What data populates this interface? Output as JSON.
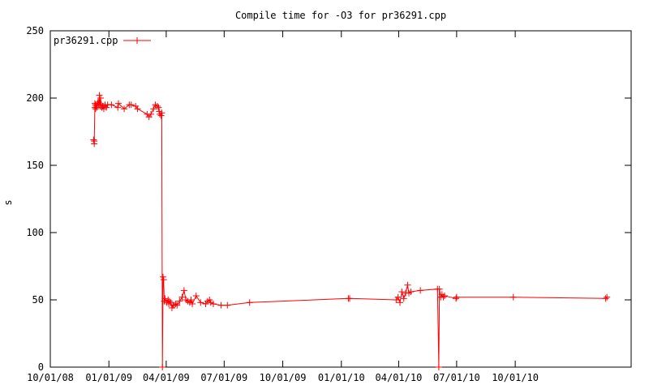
{
  "chart_data": {
    "type": "line",
    "title": "Compile time for -O3 for pr36291.cpp",
    "xlabel": "",
    "ylabel": "s",
    "xlim": [
      "2008-10-01",
      "2011-04-01"
    ],
    "ylim": [
      0,
      250
    ],
    "xticks": [
      "10/01/08",
      "01/01/09",
      "04/01/09",
      "07/01/09",
      "10/01/09",
      "01/01/10",
      "04/01/10",
      "07/01/10",
      "10/01/10"
    ],
    "yticks": [
      0,
      50,
      100,
      150,
      200,
      250
    ],
    "legend_position": "top-left",
    "grid": false,
    "series": [
      {
        "name": "pr36291.cpp",
        "color": "#ff0000",
        "marker": "plus",
        "x": [
          "2008-12-08",
          "2008-12-09",
          "2008-12-09",
          "2008-12-10",
          "2008-12-10",
          "2008-12-11",
          "2008-12-11",
          "2008-12-12",
          "2008-12-13",
          "2008-12-14",
          "2008-12-15",
          "2008-12-16",
          "2008-12-17",
          "2008-12-18",
          "2008-12-19",
          "2008-12-20",
          "2008-12-21",
          "2008-12-22",
          "2008-12-23",
          "2008-12-24",
          "2008-12-26",
          "2008-12-28",
          "2008-12-30",
          "2009-01-05",
          "2009-01-15",
          "2009-01-16",
          "2009-01-25",
          "2009-02-02",
          "2009-02-05",
          "2009-02-12",
          "2009-02-15",
          "2009-03-02",
          "2009-03-05",
          "2009-03-08",
          "2009-03-12",
          "2009-03-15",
          "2009-03-18",
          "2009-03-20",
          "2009-03-21",
          "2009-03-22",
          "2009-03-24",
          "2009-03-25",
          "2009-03-26",
          "2009-03-27",
          "2009-03-28",
          "2009-03-29",
          "2009-03-30",
          "2009-04-02",
          "2009-04-04",
          "2009-04-05",
          "2009-04-06",
          "2009-04-08",
          "2009-04-10",
          "2009-04-12",
          "2009-04-14",
          "2009-04-16",
          "2009-04-18",
          "2009-04-22",
          "2009-04-26",
          "2009-04-29",
          "2009-05-02",
          "2009-05-05",
          "2009-05-08",
          "2009-05-10",
          "2009-05-12",
          "2009-05-18",
          "2009-05-25",
          "2009-06-02",
          "2009-06-05",
          "2009-06-08",
          "2009-06-10",
          "2009-06-14",
          "2009-06-26",
          "2009-07-06",
          "2009-08-10",
          "2010-01-12",
          "2010-01-14",
          "2010-03-28",
          "2010-03-31",
          "2010-04-03",
          "2010-04-06",
          "2010-04-09",
          "2010-04-12",
          "2010-04-15",
          "2010-04-17",
          "2010-04-20",
          "2010-05-05",
          "2010-06-01",
          "2010-06-03",
          "2010-06-04",
          "2010-06-06",
          "2010-06-08",
          "2010-06-10",
          "2010-06-12",
          "2010-06-30",
          "2010-07-01",
          "2010-09-28",
          "2011-02-20",
          "2011-02-22"
        ],
        "values": [
          169,
          166,
          168,
          196,
          193,
          192,
          195,
          194,
          193,
          196,
          197,
          195,
          202,
          194,
          200,
          195,
          193,
          194,
          194,
          192,
          195,
          193,
          195,
          195,
          193,
          196,
          192,
          195,
          195,
          194,
          192,
          188,
          186,
          188,
          192,
          195,
          194,
          193,
          190,
          188,
          187,
          189,
          0,
          67,
          65,
          49,
          51,
          48,
          50,
          47,
          49,
          48,
          44,
          46,
          46,
          47,
          46,
          49,
          52,
          57,
          50,
          49,
          48,
          50,
          47,
          53,
          48,
          47,
          49,
          50,
          48,
          47,
          46,
          46,
          48,
          51,
          51,
          50,
          52,
          48,
          56,
          51,
          55,
          61,
          55,
          56,
          57,
          58,
          0,
          58,
          52,
          54,
          52,
          53,
          51,
          52,
          52,
          51,
          52
        ]
      }
    ]
  }
}
